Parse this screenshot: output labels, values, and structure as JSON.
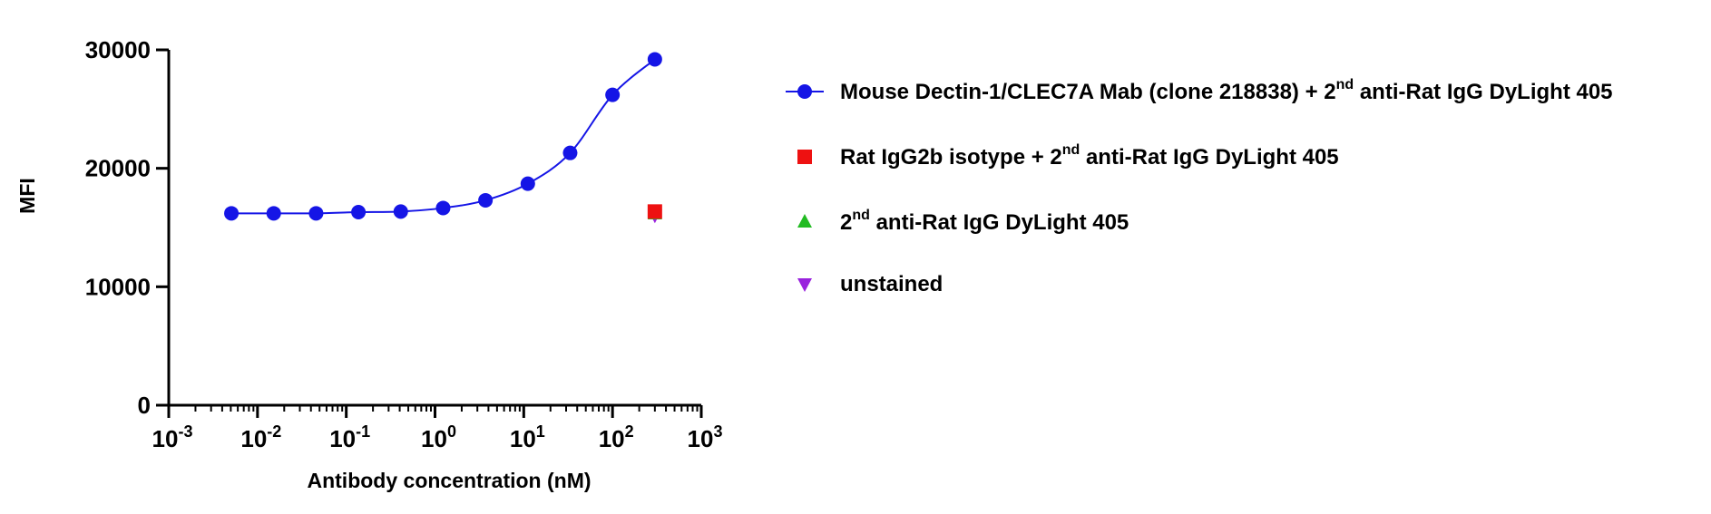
{
  "chart_data": {
    "type": "scatter",
    "xlabel": "Antibody concentration (nM)",
    "ylabel": "MFI",
    "xscale": "log",
    "xlim": [
      0.001,
      1000
    ],
    "ylim": [
      0,
      30000
    ],
    "xticks": [
      {
        "value": 0.001,
        "base": "10",
        "exp": "-3"
      },
      {
        "value": 0.01,
        "base": "10",
        "exp": "-2"
      },
      {
        "value": 0.1,
        "base": "10",
        "exp": "-1"
      },
      {
        "value": 1,
        "base": "10",
        "exp": "0"
      },
      {
        "value": 10,
        "base": "10",
        "exp": "1"
      },
      {
        "value": 100,
        "base": "10",
        "exp": "2"
      },
      {
        "value": 1000,
        "base": "10",
        "exp": "3"
      }
    ],
    "yticks": [
      {
        "value": 0,
        "label": "0"
      },
      {
        "value": 10000,
        "label": "10000"
      },
      {
        "value": 20000,
        "label": "20000"
      },
      {
        "value": 30000,
        "label": "30000"
      }
    ],
    "legend_position": "right",
    "series": [
      {
        "name": "Mouse Dectin-1/CLEC7A Mab (clone 218838) + 2nd anti-Rat IgG DyLight 405",
        "legend_parts": [
          "Mouse Dectin-1/CLEC7A Mab (clone 218838) + 2",
          "nd",
          " anti-Rat IgG DyLight 405"
        ],
        "color": "#1515e6",
        "marker": "circle",
        "line": true,
        "x": [
          0.00508,
          0.01524,
          0.04572,
          0.1372,
          0.4115,
          1.235,
          3.704,
          11.11,
          33.33,
          100,
          300
        ],
        "y": [
          16200,
          16200,
          16200,
          16300,
          16350,
          16650,
          17300,
          18700,
          21300,
          26200,
          29200
        ]
      },
      {
        "name": "Rat IgG2b isotype + 2nd anti-Rat IgG DyLight 405",
        "legend_parts": [
          "Rat IgG2b isotype + 2",
          "nd",
          " anti-Rat IgG DyLight 405"
        ],
        "color": "#ee1111",
        "marker": "square",
        "line": false,
        "x": [
          300
        ],
        "y": [
          16350
        ]
      },
      {
        "name": "2nd anti-Rat IgG DyLight 405",
        "legend_parts": [
          "2",
          "nd",
          " anti-Rat IgG DyLight 405"
        ],
        "color": "#22bb22",
        "marker": "triangle-up",
        "line": false,
        "x": [
          300
        ],
        "y": [
          16150
        ]
      },
      {
        "name": "unstained",
        "legend_parts": [
          "unstained",
          "",
          ""
        ],
        "color": "#9922dd",
        "marker": "triangle-down",
        "line": false,
        "x": [
          300
        ],
        "y": [
          16050
        ]
      }
    ]
  }
}
